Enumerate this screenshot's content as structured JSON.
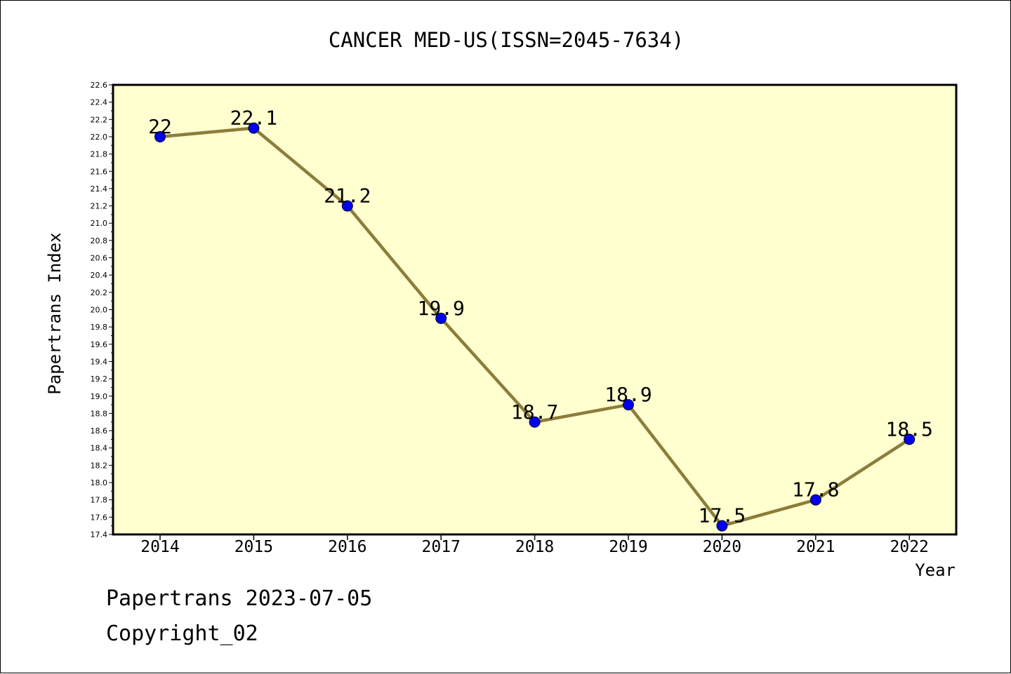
{
  "chart_data": {
    "type": "line",
    "title": "CANCER MED-US(ISSN=2045-7634)",
    "xlabel": "Year",
    "ylabel": "Papertrans Index",
    "categories": [
      "2014",
      "2015",
      "2016",
      "2017",
      "2018",
      "2019",
      "2020",
      "2021",
      "2022"
    ],
    "series": [
      {
        "values": [
          22,
          22.1,
          21.2,
          19.9,
          18.7,
          18.9,
          17.5,
          17.8,
          18.5
        ],
        "labels": [
          "22",
          "22.1",
          "21.2",
          "19.9",
          "18.7",
          "18.9",
          "17.5",
          "17.8",
          "18.5"
        ]
      }
    ],
    "ylim": [
      17.4,
      22.6
    ],
    "yticks": [
      "17.4",
      "17.6",
      "17.8",
      "18.0",
      "18.2",
      "18.4",
      "18.6",
      "18.8",
      "19.0",
      "19.2",
      "19.4",
      "19.6",
      "19.8",
      "20.0",
      "20.2",
      "20.4",
      "20.6",
      "20.8",
      "21.0",
      "21.2",
      "21.4",
      "21.6",
      "21.8",
      "22.0",
      "22.2",
      "22.4",
      "22.6"
    ],
    "grid": false,
    "colors": {
      "plot_background": "#ffffd0",
      "line": "#8b7d3a",
      "marker": "#0000ee"
    }
  },
  "footer": {
    "date_line": "Papertrans 2023-07-05",
    "copyright": "Copyright_02"
  }
}
